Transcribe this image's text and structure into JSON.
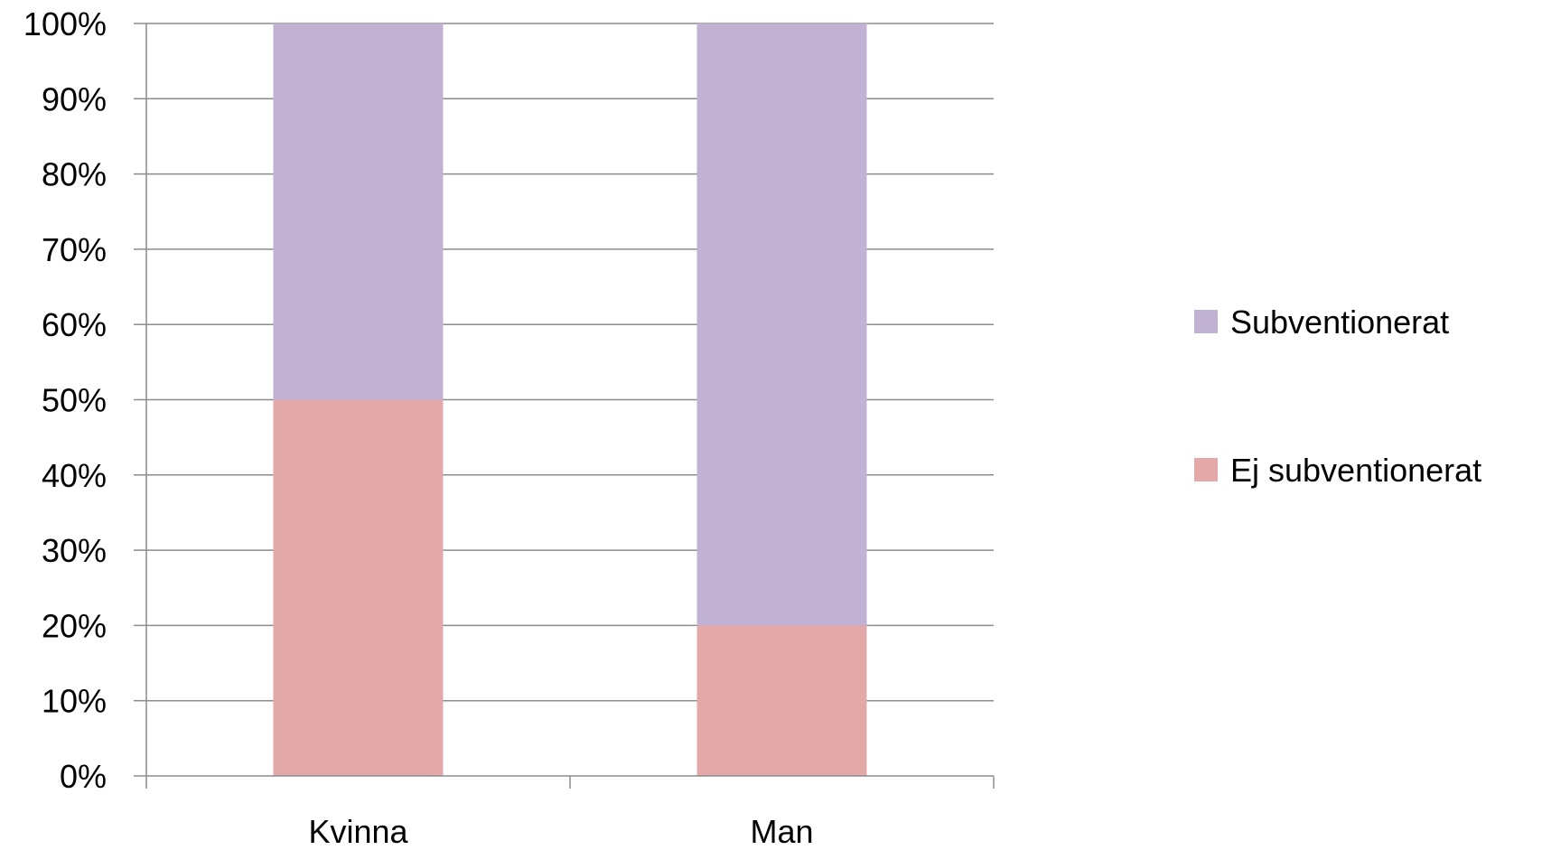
{
  "chart_data": {
    "type": "bar",
    "stacked": true,
    "percent_stacked": true,
    "title": "",
    "xlabel": "",
    "ylabel": "",
    "categories": [
      "Kvinna",
      "Man"
    ],
    "ylim": [
      0,
      100
    ],
    "y_ticks": [
      "0%",
      "10%",
      "20%",
      "30%",
      "40%",
      "50%",
      "60%",
      "70%",
      "80%",
      "90%",
      "100%"
    ],
    "grid": true,
    "legend_position": "right",
    "series": [
      {
        "name": "Ej subventionerat",
        "values": [
          50,
          20
        ],
        "color": "#e3a9a8"
      },
      {
        "name": "Subventionerat",
        "values": [
          50,
          80
        ],
        "color": "#c1b2d4"
      }
    ],
    "legend_order": [
      "Subventionerat",
      "Ej subventionerat"
    ]
  }
}
